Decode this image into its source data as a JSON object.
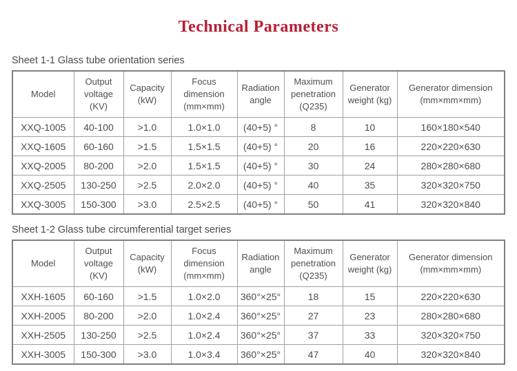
{
  "page": {
    "title": "Technical Parameters"
  },
  "colors": {
    "title": "#b71e33",
    "text": "#4f4f4f",
    "border_inner": "#a0a0a0",
    "border_outer": "#7f7f7f"
  },
  "tables": [
    {
      "caption": "Sheet 1-1 Glass tube orientation series",
      "headers": [
        "Model",
        "Output voltage (KV)",
        "Capacity (kW)",
        "Focus dimension (mm×mm)",
        "Radiation angle",
        "Maximum penetration (Q235)",
        "Generator weight (kg)",
        "Generator dimension (mm×mm×mm)"
      ],
      "rows": [
        [
          "XXQ-1005",
          "40-100",
          ">1.0",
          "1.0×1.0",
          "(40+5) °",
          "8",
          "10",
          "160×180×540"
        ],
        [
          "XXQ-1605",
          "60-160",
          ">1.5",
          "1.5×1.5",
          "(40+5) °",
          "20",
          "16",
          "220×220×630"
        ],
        [
          "XXQ-2005",
          "80-200",
          ">2.0",
          "1.5×1.5",
          "(40+5) °",
          "30",
          "24",
          "280×280×680"
        ],
        [
          "XXQ-2505",
          "130-250",
          ">2.5",
          "2.0×2.0",
          "(40+5) °",
          "40",
          "35",
          "320×320×750"
        ],
        [
          "XXQ-3005",
          "150-300",
          ">3.0",
          "2.5×2.5",
          "(40+5) °",
          "50",
          "41",
          "320×320×840"
        ]
      ]
    },
    {
      "caption": "Sheet 1-2 Glass tube circumferential target series",
      "headers": [
        "Model",
        "Output voltage (KV)",
        "Capacity (kW)",
        "Focus dimension (mm×mm)",
        "Radiation angle",
        "Maximum penetration (Q235)",
        "Generator weight (kg)",
        "Generator dimension (mm×mm×mm)"
      ],
      "rows": [
        [
          "XXH-1605",
          "60-160",
          ">1.5",
          "1.0×2.0",
          "360°×25°",
          "18",
          "15",
          "220×220×630"
        ],
        [
          "XXH-2005",
          "80-200",
          ">2.0",
          "1.0×2.4",
          "360°×25°",
          "27",
          "23",
          "280×280×680"
        ],
        [
          "XXH-2505",
          "130-250",
          ">2.5",
          "1.0×2.4",
          "360°×25°",
          "37",
          "33",
          "320×320×750"
        ],
        [
          "XXH-3005",
          "150-300",
          ">3.0",
          "1.0×3.4",
          "360°×25°",
          "47",
          "40",
          "320×320×840"
        ]
      ]
    }
  ]
}
